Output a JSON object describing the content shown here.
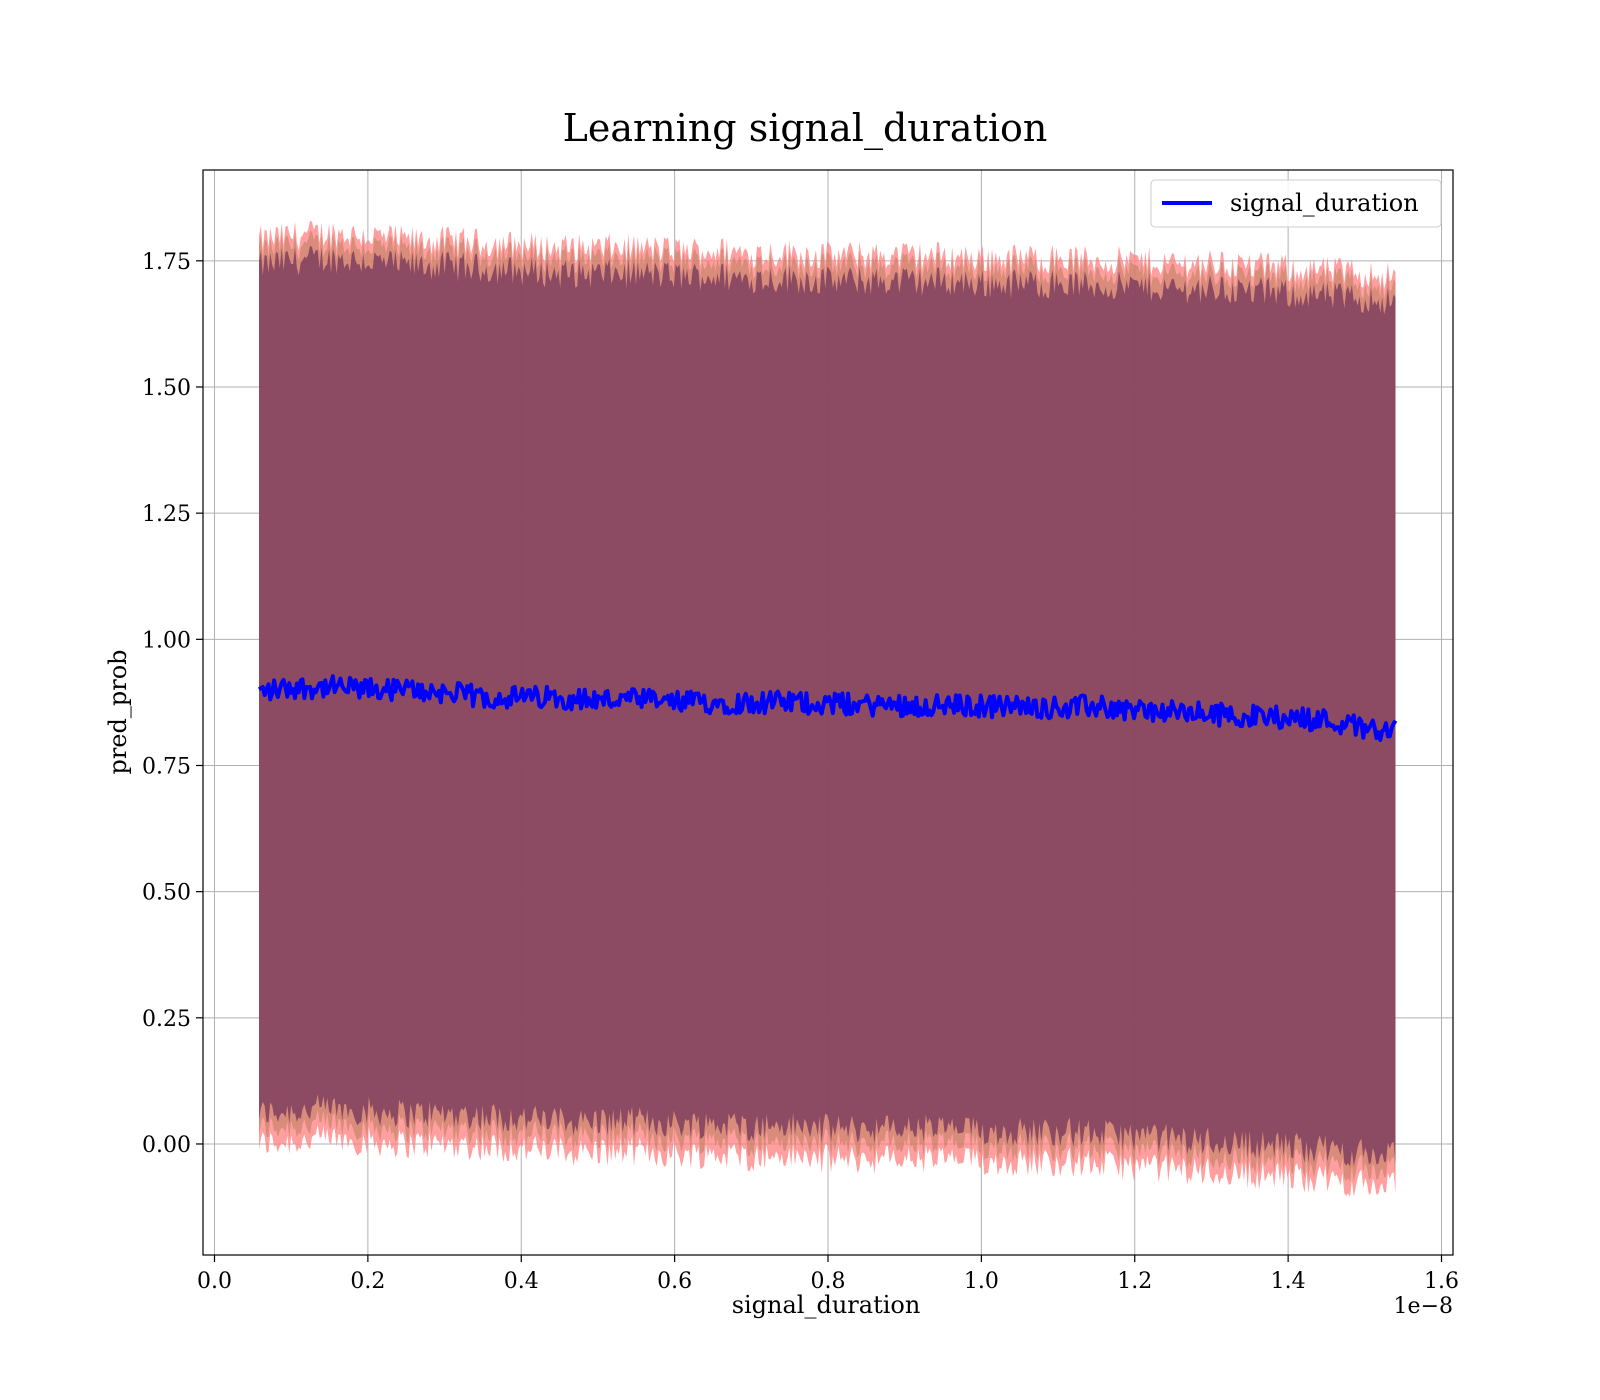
{
  "chart_data": {
    "type": "line",
    "title": "Learning signal_duration",
    "xlabel": "signal_duration",
    "ylabel": "pred_prob",
    "x_offset_label": "1e−8",
    "xlim": [
      -0.015,
      1.615
    ],
    "ylim": [
      -0.22,
      1.93
    ],
    "x_ticks": [
      0.0,
      0.2,
      0.4,
      0.6,
      0.8,
      1.0,
      1.2,
      1.4,
      1.6
    ],
    "x_tick_labels": [
      "0.0",
      "0.2",
      "0.4",
      "0.6",
      "0.8",
      "1.0",
      "1.2",
      "1.4",
      "1.6"
    ],
    "y_ticks": [
      0.0,
      0.25,
      0.5,
      0.75,
      1.0,
      1.25,
      1.5,
      1.75
    ],
    "y_tick_labels": [
      "0.00",
      "0.25",
      "0.50",
      "0.75",
      "1.00",
      "1.25",
      "1.50",
      "1.75"
    ],
    "grid": true,
    "legend": {
      "position": "top-right",
      "entries": [
        "signal_duration"
      ]
    },
    "colors": {
      "line": "#0000ff",
      "band_outer": "#ff7f7f",
      "band_inner": "#7f3f5f",
      "band_mid": "#c08060"
    },
    "series": [
      {
        "name": "signal_duration",
        "x": [
          0.058,
          0.1,
          0.15,
          0.2,
          0.25,
          0.3,
          0.35,
          0.4,
          0.45,
          0.5,
          0.55,
          0.6,
          0.65,
          0.7,
          0.75,
          0.8,
          0.85,
          0.9,
          0.95,
          1.0,
          1.05,
          1.1,
          1.15,
          1.2,
          1.25,
          1.3,
          1.35,
          1.4,
          1.45,
          1.5,
          1.54
        ],
        "y": [
          0.895,
          0.905,
          0.905,
          0.9,
          0.9,
          0.895,
          0.885,
          0.885,
          0.885,
          0.88,
          0.88,
          0.875,
          0.875,
          0.875,
          0.875,
          0.873,
          0.87,
          0.87,
          0.868,
          0.868,
          0.867,
          0.865,
          0.867,
          0.86,
          0.855,
          0.852,
          0.848,
          0.845,
          0.84,
          0.825,
          0.82
        ]
      }
    ],
    "upper_band": [
      1.77,
      1.78,
      1.785,
      1.78,
      1.77,
      1.77,
      1.765,
      1.76,
      1.755,
      1.755,
      1.755,
      1.75,
      1.75,
      1.745,
      1.745,
      1.74,
      1.74,
      1.74,
      1.74,
      1.735,
      1.735,
      1.735,
      1.73,
      1.73,
      1.725,
      1.725,
      1.72,
      1.715,
      1.71,
      1.705,
      1.7
    ],
    "lower_band": [
      0.03,
      0.035,
      0.04,
      0.035,
      0.03,
      0.03,
      0.025,
      0.02,
      0.015,
      0.015,
      0.015,
      0.01,
      0.01,
      0.005,
      0.005,
      0.0,
      0.0,
      0.0,
      0.0,
      -0.005,
      -0.005,
      -0.005,
      -0.01,
      -0.015,
      -0.02,
      -0.025,
      -0.03,
      -0.035,
      -0.04,
      -0.05,
      -0.055
    ]
  }
}
